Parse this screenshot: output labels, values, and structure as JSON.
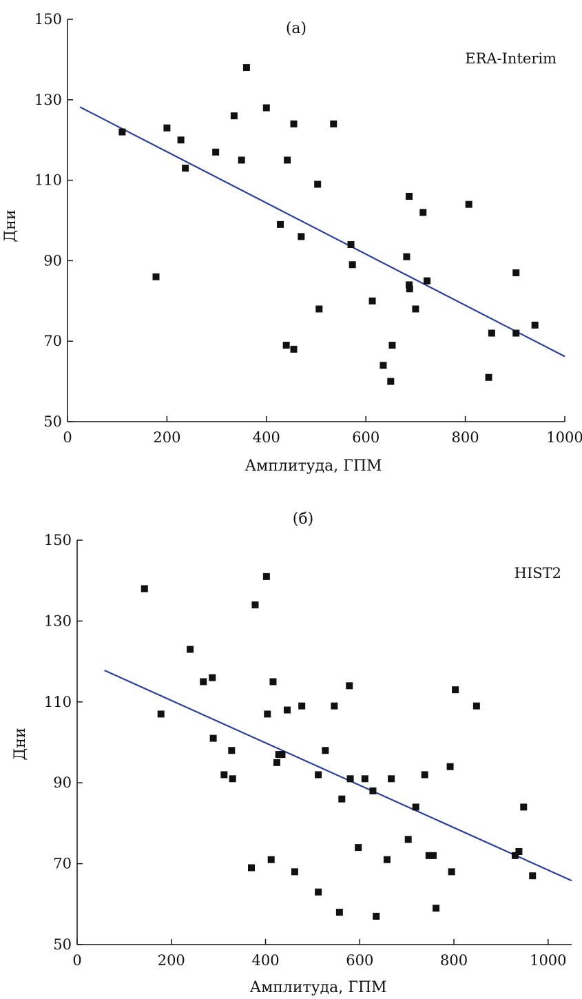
{
  "chart_data": [
    {
      "type": "scatter",
      "panel_label": "(а)",
      "dataset_label": "ERA-Interim",
      "xlabel": "Амплитуда, ГПМ",
      "ylabel": "Дни",
      "xlim": [
        0,
        1000
      ],
      "ylim": [
        50,
        150
      ],
      "xticks": [
        0,
        200,
        400,
        600,
        800,
        1000
      ],
      "yticks": [
        50,
        70,
        90,
        110,
        130,
        150
      ],
      "grid": false,
      "marker_color": "#111111",
      "trend_color": "#2b3f96",
      "points": [
        {
          "x": 110,
          "y": 122
        },
        {
          "x": 178,
          "y": 86
        },
        {
          "x": 200,
          "y": 123
        },
        {
          "x": 228,
          "y": 120
        },
        {
          "x": 237,
          "y": 113
        },
        {
          "x": 298,
          "y": 117
        },
        {
          "x": 335,
          "y": 126
        },
        {
          "x": 350,
          "y": 115
        },
        {
          "x": 360,
          "y": 138
        },
        {
          "x": 400,
          "y": 128
        },
        {
          "x": 428,
          "y": 99
        },
        {
          "x": 440,
          "y": 69
        },
        {
          "x": 442,
          "y": 115
        },
        {
          "x": 455,
          "y": 124
        },
        {
          "x": 455,
          "y": 68
        },
        {
          "x": 470,
          "y": 96
        },
        {
          "x": 503,
          "y": 109
        },
        {
          "x": 506,
          "y": 78
        },
        {
          "x": 535,
          "y": 124
        },
        {
          "x": 570,
          "y": 94
        },
        {
          "x": 573,
          "y": 89
        },
        {
          "x": 613,
          "y": 80
        },
        {
          "x": 635,
          "y": 64
        },
        {
          "x": 650,
          "y": 60
        },
        {
          "x": 653,
          "y": 69
        },
        {
          "x": 682,
          "y": 91
        },
        {
          "x": 687,
          "y": 106
        },
        {
          "x": 687,
          "y": 84
        },
        {
          "x": 688,
          "y": 83
        },
        {
          "x": 700,
          "y": 78
        },
        {
          "x": 715,
          "y": 102
        },
        {
          "x": 723,
          "y": 85
        },
        {
          "x": 807,
          "y": 104
        },
        {
          "x": 847,
          "y": 61
        },
        {
          "x": 853,
          "y": 72
        },
        {
          "x": 902,
          "y": 87
        },
        {
          "x": 902,
          "y": 72
        },
        {
          "x": 940,
          "y": 74
        }
      ],
      "trend": {
        "x": [
          25,
          1000
        ],
        "y": [
          128.2,
          66.2
        ]
      }
    },
    {
      "type": "scatter",
      "panel_label": "(б)",
      "dataset_label": "HIST2",
      "xlabel": "Амплитуда, ГПМ",
      "ylabel": "Дни",
      "xlim": [
        0,
        1050
      ],
      "ylim": [
        50,
        150
      ],
      "xticks": [
        0,
        200,
        400,
        600,
        800,
        1000
      ],
      "yticks": [
        50,
        70,
        90,
        110,
        130,
        150
      ],
      "grid": false,
      "marker_color": "#111111",
      "trend_color": "#2b3f96",
      "points": [
        {
          "x": 143,
          "y": 138
        },
        {
          "x": 178,
          "y": 107
        },
        {
          "x": 240,
          "y": 123
        },
        {
          "x": 268,
          "y": 115
        },
        {
          "x": 287,
          "y": 116
        },
        {
          "x": 289,
          "y": 101
        },
        {
          "x": 312,
          "y": 92
        },
        {
          "x": 328,
          "y": 98
        },
        {
          "x": 330,
          "y": 91
        },
        {
          "x": 370,
          "y": 69
        },
        {
          "x": 378,
          "y": 134
        },
        {
          "x": 402,
          "y": 141
        },
        {
          "x": 404,
          "y": 107
        },
        {
          "x": 412,
          "y": 71
        },
        {
          "x": 416,
          "y": 115
        },
        {
          "x": 424,
          "y": 95
        },
        {
          "x": 428,
          "y": 97
        },
        {
          "x": 435,
          "y": 97
        },
        {
          "x": 446,
          "y": 108
        },
        {
          "x": 462,
          "y": 68
        },
        {
          "x": 477,
          "y": 109
        },
        {
          "x": 512,
          "y": 92
        },
        {
          "x": 512,
          "y": 63
        },
        {
          "x": 527,
          "y": 98
        },
        {
          "x": 546,
          "y": 109
        },
        {
          "x": 557,
          "y": 58
        },
        {
          "x": 562,
          "y": 86
        },
        {
          "x": 578,
          "y": 114
        },
        {
          "x": 580,
          "y": 91
        },
        {
          "x": 597,
          "y": 74
        },
        {
          "x": 611,
          "y": 91
        },
        {
          "x": 628,
          "y": 88
        },
        {
          "x": 635,
          "y": 57
        },
        {
          "x": 658,
          "y": 71
        },
        {
          "x": 667,
          "y": 91
        },
        {
          "x": 703,
          "y": 76
        },
        {
          "x": 719,
          "y": 84
        },
        {
          "x": 738,
          "y": 92
        },
        {
          "x": 747,
          "y": 72
        },
        {
          "x": 756,
          "y": 72
        },
        {
          "x": 762,
          "y": 59
        },
        {
          "x": 792,
          "y": 94
        },
        {
          "x": 795,
          "y": 68
        },
        {
          "x": 803,
          "y": 113
        },
        {
          "x": 848,
          "y": 109
        },
        {
          "x": 930,
          "y": 72
        },
        {
          "x": 938,
          "y": 73
        },
        {
          "x": 948,
          "y": 84
        },
        {
          "x": 967,
          "y": 67
        }
      ],
      "trend": {
        "x": [
          58,
          1050
        ],
        "y": [
          117.8,
          65.8
        ]
      }
    }
  ]
}
